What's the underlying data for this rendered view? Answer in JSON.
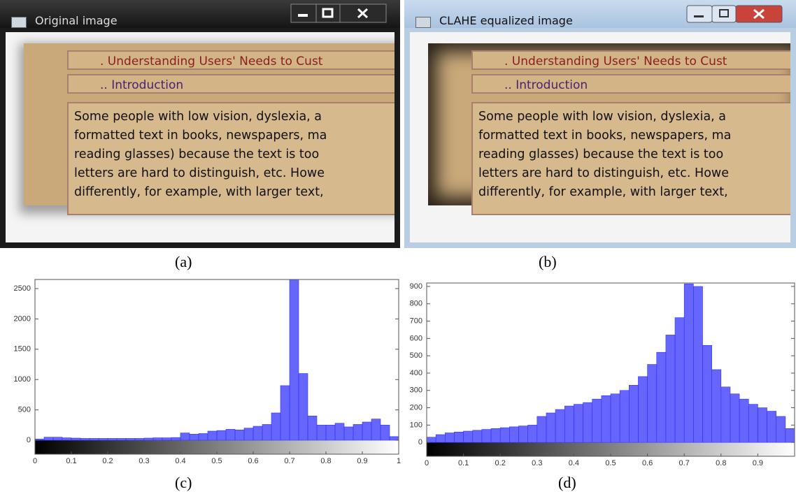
{
  "windows": [
    {
      "title": "Original image",
      "heading1": ". Understanding Users' Needs to Cust",
      "heading2": ".. Introduction",
      "lines": [
        "Some people with low vision, dyslexia, a",
        "formatted text in books, newspapers, ma",
        "reading glasses) because the text is too",
        "letters are hard to distinguish, etc. Howe",
        "differently, for example, with larger text,"
      ]
    },
    {
      "title": "CLAHE equalized image",
      "heading1": ". Understanding Users' Needs to Cust",
      "heading2": ".. Introduction",
      "lines": [
        "Some people with low vision, dyslexia, a",
        "formatted text in books, newspapers, ma",
        "reading glasses) because the text is too",
        "letters are hard to distinguish, etc. Howe",
        "differently, for example, with larger text,"
      ]
    }
  ],
  "captions": [
    "(a)",
    "(b)",
    "(c)",
    "(d)"
  ],
  "chart_data": [
    {
      "type": "histogram",
      "color": "#3333ff",
      "bins": [
        0,
        0.025,
        0.05,
        0.075,
        0.1,
        0.125,
        0.15,
        0.175,
        0.2,
        0.225,
        0.25,
        0.275,
        0.3,
        0.325,
        0.35,
        0.375,
        0.4,
        0.425,
        0.45,
        0.475,
        0.5,
        0.525,
        0.55,
        0.575,
        0.6,
        0.625,
        0.65,
        0.675,
        0.7,
        0.725,
        0.75,
        0.775,
        0.8,
        0.825,
        0.85,
        0.875,
        0.9,
        0.925,
        0.95,
        0.975,
        1
      ],
      "values": [
        20,
        50,
        50,
        40,
        35,
        30,
        30,
        30,
        30,
        30,
        30,
        30,
        35,
        40,
        40,
        45,
        120,
        100,
        110,
        150,
        160,
        180,
        170,
        200,
        230,
        260,
        450,
        900,
        2650,
        1100,
        400,
        250,
        250,
        280,
        220,
        260,
        300,
        350,
        250,
        60
      ],
      "xlim": [
        0,
        1
      ],
      "ylim": [
        -230,
        2650
      ],
      "xticks": [
        0,
        0.1,
        0.2,
        0.3,
        0.4,
        0.5,
        0.6,
        0.7,
        0.8,
        0.9,
        1
      ],
      "yticks": [
        0,
        500,
        1000,
        1500,
        2000,
        2500
      ]
    },
    {
      "type": "histogram",
      "color": "#3333ff",
      "bins": [
        0,
        0.025,
        0.05,
        0.075,
        0.1,
        0.125,
        0.15,
        0.175,
        0.2,
        0.225,
        0.25,
        0.275,
        0.3,
        0.325,
        0.35,
        0.375,
        0.4,
        0.425,
        0.45,
        0.475,
        0.5,
        0.525,
        0.55,
        0.575,
        0.6,
        0.625,
        0.65,
        0.675,
        0.7,
        0.725,
        0.75,
        0.775,
        0.8,
        0.825,
        0.85,
        0.875,
        0.9,
        0.925,
        0.95,
        0.975,
        1
      ],
      "values": [
        30,
        45,
        55,
        60,
        65,
        70,
        75,
        80,
        85,
        90,
        95,
        100,
        150,
        170,
        190,
        210,
        220,
        230,
        250,
        270,
        280,
        300,
        330,
        380,
        450,
        520,
        620,
        720,
        915,
        900,
        560,
        420,
        320,
        280,
        250,
        220,
        200,
        180,
        150,
        80
      ],
      "xlim": [
        0,
        1
      ],
      "ylim": [
        -80,
        920
      ],
      "xticks": [
        0,
        0.1,
        0.2,
        0.3,
        0.4,
        0.5,
        0.6,
        0.7,
        0.8,
        0.9
      ],
      "yticks": [
        0,
        100,
        200,
        300,
        400,
        500,
        600,
        700,
        800,
        900
      ]
    }
  ]
}
